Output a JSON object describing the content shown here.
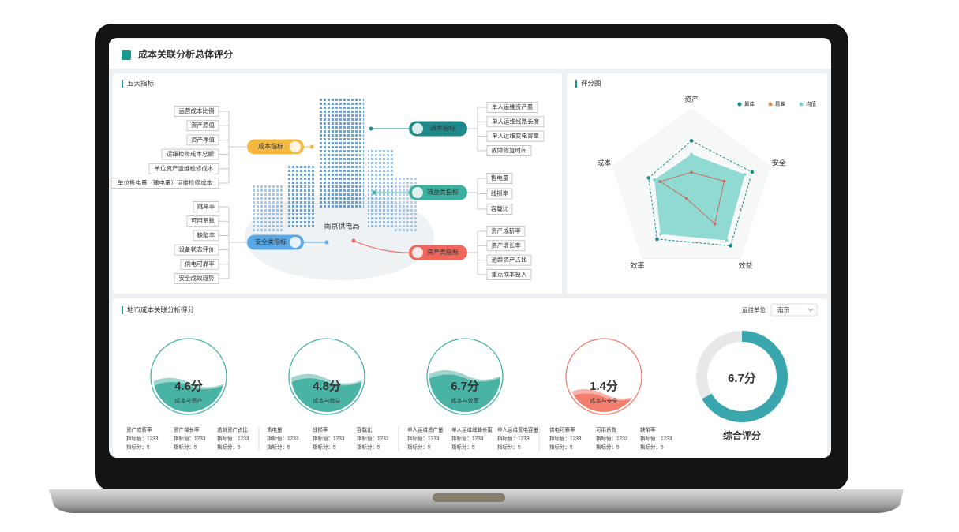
{
  "header": {
    "title": "成本关联分析总体评分"
  },
  "indicators": {
    "title": "五大指标",
    "center": "南京供电局",
    "groups": [
      {
        "name": "成本指标",
        "items": [
          "运营成本比例",
          "资产原值",
          "资产净值",
          "运维检修成本总额",
          "单位资产运维检修成本",
          "单位售电量（输电量）运维检修成本"
        ]
      },
      {
        "name": "安全类指标",
        "items": [
          "跳闸率",
          "可用系数",
          "缺陷率",
          "设备状态评价",
          "供电可靠率",
          "安全成效趋势"
        ]
      },
      {
        "name": "效率指标",
        "items": [
          "单人运维资产量",
          "单人运维线路长度",
          "单人运维变电容量",
          "故障修复时间"
        ]
      },
      {
        "name": "效益类指标",
        "items": [
          "售电量",
          "线损率",
          "容载比"
        ]
      },
      {
        "name": "资产类指标",
        "items": [
          "资产成新率",
          "资产增长率",
          "逾龄资产占比",
          "重点成本投入"
        ]
      }
    ]
  },
  "chart_data": {
    "type": "radar",
    "title": "评分图",
    "categories": [
      "资产",
      "安全",
      "效益",
      "效率",
      "成本"
    ],
    "ylim": [
      0,
      100
    ],
    "grid": true,
    "series": [
      {
        "name": "最佳",
        "color": "#1a8a86",
        "values": [
          68,
          85,
          89,
          78,
          60
        ]
      },
      {
        "name": "最差",
        "color": "#e0913f",
        "values": [
          26,
          46,
          53,
          11,
          44
        ]
      },
      {
        "name": "均值",
        "color": "#7fd3cc",
        "values": [
          50,
          75,
          80,
          70,
          52
        ]
      }
    ]
  },
  "city_scores": {
    "title": "地市成本关联分析得分",
    "unit_label": "运维单位",
    "unit_value": "南京",
    "gauges": [
      {
        "score": "4.6分",
        "name": "成本与资产",
        "metrics": [
          {
            "name": "资产成新率",
            "value": "指标值：1233",
            "score": "指标分：5"
          },
          {
            "name": "资产增长率",
            "value": "指标值：1233",
            "score": "指标分：5"
          },
          {
            "name": "逾龄资产占比",
            "value": "指标值：1233",
            "score": "指标分：5"
          }
        ]
      },
      {
        "score": "4.8分",
        "name": "成本与效益",
        "metrics": [
          {
            "name": "售电量",
            "value": "指标值：1233",
            "score": "指标分：5"
          },
          {
            "name": "线损率",
            "value": "指标值：1233",
            "score": "指标分：5"
          },
          {
            "name": "容载比",
            "value": "指标值：1233",
            "score": "指标分：5"
          }
        ]
      },
      {
        "score": "6.7分",
        "name": "成本与效率",
        "metrics": [
          {
            "name": "单人运维资产量",
            "value": "指标值：1233",
            "score": "指标分：5"
          },
          {
            "name": "单人运维线路长度",
            "value": "指标值：1233",
            "score": "指标分：5"
          },
          {
            "name": "单人运维变电容量",
            "value": "指标值：1233",
            "score": "指标分：5"
          }
        ]
      },
      {
        "score": "1.4分",
        "name": "成本与安全",
        "metrics": [
          {
            "name": "供电可靠率",
            "value": "指标值：1233",
            "score": "指标分：5"
          },
          {
            "name": "可用系数",
            "value": "指标值：1233",
            "score": "指标分：5"
          },
          {
            "name": "缺陷率",
            "value": "指标值：1233",
            "score": "指标分：5"
          }
        ]
      }
    ],
    "total": {
      "score": "6.7分",
      "name": "综合评分"
    }
  }
}
